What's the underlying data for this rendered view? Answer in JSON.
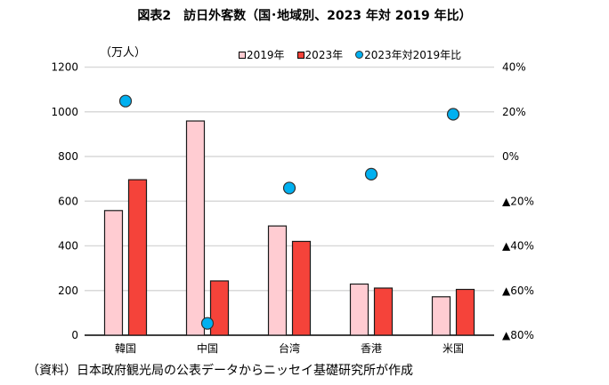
{
  "title": "図表2　訪日外客数（国･地域別、2023 年対 2019 年比）",
  "unit_label": "（万人）",
  "source_note": "（資料）日本政府観光局の公表データからニッセイ基礎研究所が作成",
  "colors": {
    "bar_2019": "#ffccd2",
    "bar_2023": "#f5433a",
    "dot": "#00b0f0",
    "grid": "#d9d9d9",
    "outline": "#1a1a1a"
  },
  "legend": [
    {
      "label": "2019年",
      "type": "box",
      "color": "#ffccd2"
    },
    {
      "label": "2023年",
      "type": "box",
      "color": "#f5433a"
    },
    {
      "label": "2023年対2019年比",
      "type": "dot",
      "color": "#00b0f0"
    }
  ],
  "left_axis": {
    "ticks": [
      "0",
      "200",
      "400",
      "600",
      "800",
      "1000",
      "1200"
    ]
  },
  "right_axis": {
    "ticks": [
      "▲80%",
      "▲60%",
      "▲40%",
      "▲20%",
      "0%",
      "20%",
      "40%"
    ]
  },
  "chart_data": {
    "type": "bar",
    "title": "図表2　訪日外客数（国･地域別、2023 年対 2019 年比）",
    "categories": [
      "韓国",
      "中国",
      "台湾",
      "香港",
      "米国"
    ],
    "series": [
      {
        "name": "2019年",
        "type": "bar",
        "axis": "left",
        "values": [
          558,
          959,
          489,
          229,
          172
        ]
      },
      {
        "name": "2023年",
        "type": "bar",
        "axis": "left",
        "values": [
          696,
          243,
          420,
          211,
          205
        ]
      },
      {
        "name": "2023年対2019年比",
        "type": "scatter",
        "axis": "right",
        "unit": "%",
        "values": [
          24.8,
          -74.7,
          -14.1,
          -7.9,
          18.9
        ]
      }
    ],
    "xlabel": "",
    "ylabel": "（万人）",
    "ylim": [
      0,
      1200
    ],
    "y2lim": [
      -80,
      40
    ],
    "y2_ticks": [
      -80,
      -60,
      -40,
      -20,
      0,
      20,
      40
    ],
    "y2_negative_prefix": "▲",
    "grid": true,
    "legend_position": "top-right"
  }
}
